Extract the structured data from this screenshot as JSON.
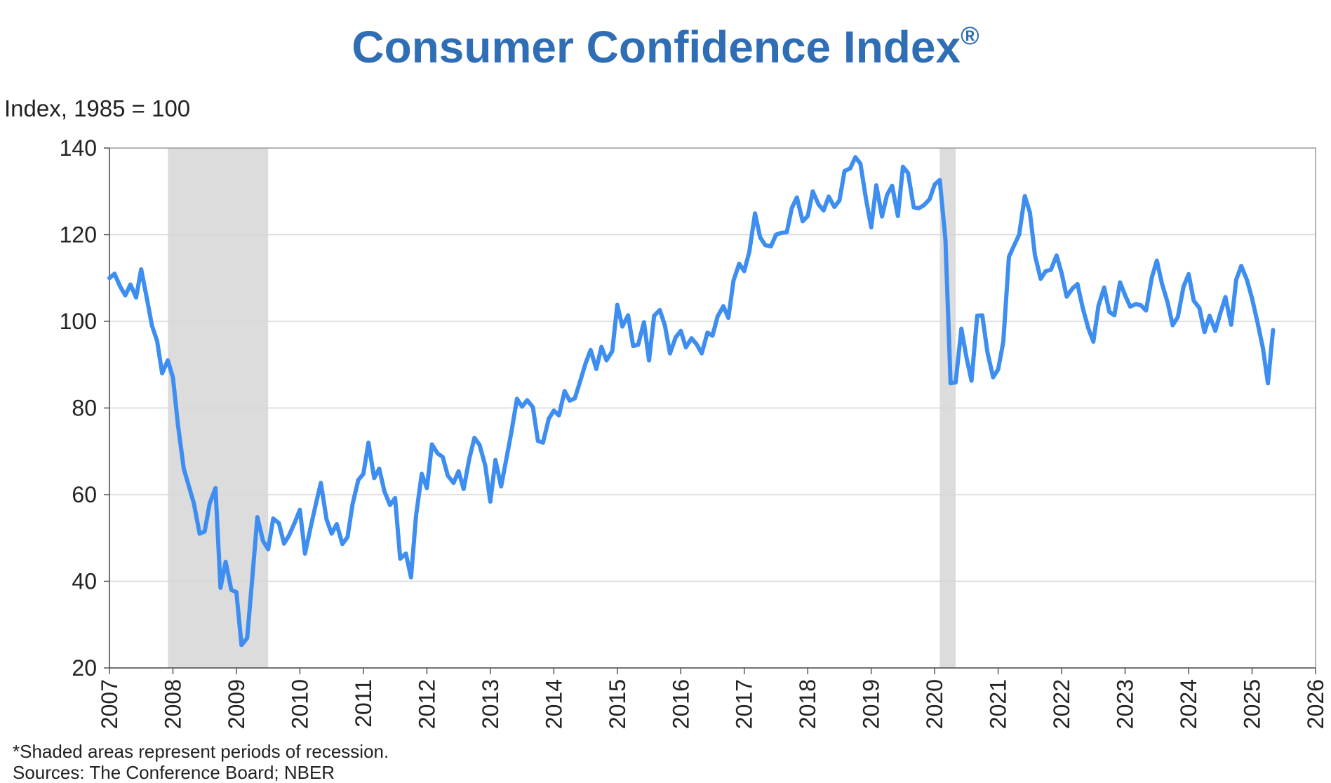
{
  "chart_data": {
    "type": "line",
    "title": "Consumer Confidence Index",
    "title_mark": "®",
    "ylabel": "Index, 1985 = 100",
    "xlabel": "",
    "ylim": [
      20,
      140
    ],
    "xlim": [
      2007,
      2026
    ],
    "y_ticks": [
      20,
      40,
      60,
      80,
      100,
      120,
      140
    ],
    "x_ticks": [
      2007,
      2008,
      2009,
      2010,
      2011,
      2012,
      2013,
      2014,
      2015,
      2016,
      2017,
      2018,
      2019,
      2020,
      2021,
      2022,
      2023,
      2024,
      2025,
      2026
    ],
    "grid": "horizontal",
    "line_color": "#3d8ef0",
    "recession_color": "#dcdcdc",
    "recessions": [
      {
        "start": 2007.92,
        "end": 2009.5
      },
      {
        "start": 2020.08,
        "end": 2020.33
      }
    ],
    "series": [
      {
        "x": [
          2007.0,
          2007.08,
          2007.17,
          2007.25,
          2007.33,
          2007.42,
          2007.5,
          2007.58,
          2007.67,
          2007.75,
          2007.83,
          2007.92,
          2008.0,
          2008.08,
          2008.17,
          2008.25,
          2008.33,
          2008.42,
          2008.5,
          2008.58,
          2008.67,
          2008.75,
          2008.83,
          2008.92,
          2009.0,
          2009.08,
          2009.17,
          2009.25,
          2009.33,
          2009.42,
          2009.5,
          2009.58,
          2009.67,
          2009.75,
          2009.83,
          2009.92,
          2010.0,
          2010.08,
          2010.17,
          2010.25,
          2010.33,
          2010.42,
          2010.5,
          2010.58,
          2010.67,
          2010.75,
          2010.83,
          2010.92,
          2011.0,
          2011.08,
          2011.17,
          2011.25,
          2011.33,
          2011.42,
          2011.5,
          2011.58,
          2011.67,
          2011.75,
          2011.83,
          2011.92,
          2012.0,
          2012.08,
          2012.17,
          2012.25,
          2012.33,
          2012.42,
          2012.5,
          2012.58,
          2012.67,
          2012.75,
          2012.83,
          2012.92,
          2013.0,
          2013.08,
          2013.17,
          2013.25,
          2013.33,
          2013.42,
          2013.5,
          2013.58,
          2013.67,
          2013.75,
          2013.83,
          2013.92,
          2014.0,
          2014.08,
          2014.17,
          2014.25,
          2014.33,
          2014.42,
          2014.5,
          2014.58,
          2014.67,
          2014.75,
          2014.83,
          2014.92,
          2015.0,
          2015.08,
          2015.17,
          2015.25,
          2015.33,
          2015.42,
          2015.5,
          2015.58,
          2015.67,
          2015.75,
          2015.83,
          2015.92,
          2016.0,
          2016.08,
          2016.17,
          2016.25,
          2016.33,
          2016.42,
          2016.5,
          2016.58,
          2016.67,
          2016.75,
          2016.83,
          2016.92,
          2017.0,
          2017.08,
          2017.17,
          2017.25,
          2017.33,
          2017.42,
          2017.5,
          2017.58,
          2017.67,
          2017.75,
          2017.83,
          2017.92,
          2018.0,
          2018.08,
          2018.17,
          2018.25,
          2018.33,
          2018.42,
          2018.5,
          2018.58,
          2018.67,
          2018.75,
          2018.83,
          2018.92,
          2019.0,
          2019.08,
          2019.17,
          2019.25,
          2019.33,
          2019.42,
          2019.5,
          2019.58,
          2019.67,
          2019.75,
          2019.83,
          2019.92,
          2020.0,
          2020.08,
          2020.17,
          2020.25,
          2020.33,
          2020.42,
          2020.5,
          2020.58,
          2020.67,
          2020.75,
          2020.83,
          2020.92,
          2021.0,
          2021.08,
          2021.17,
          2021.25,
          2021.33,
          2021.42,
          2021.5,
          2021.58,
          2021.67,
          2021.75,
          2021.83,
          2021.92,
          2022.0,
          2022.08,
          2022.17,
          2022.25,
          2022.33,
          2022.42,
          2022.5,
          2022.58,
          2022.67,
          2022.75,
          2022.83,
          2022.92,
          2023.0,
          2023.08,
          2023.17,
          2023.25,
          2023.33,
          2023.42,
          2023.5,
          2023.58,
          2023.67,
          2023.75,
          2023.83,
          2023.92,
          2024.0,
          2024.08,
          2024.17,
          2024.25,
          2024.33,
          2024.42,
          2024.5,
          2024.58,
          2024.67,
          2024.75,
          2024.83,
          2024.92,
          2025.0,
          2025.08,
          2025.17,
          2025.25,
          2025.33
        ],
        "values": [
          110,
          111,
          108,
          106,
          108.5,
          105.5,
          112,
          106,
          99,
          95.5,
          88,
          91,
          87,
          76,
          66,
          62,
          58,
          51,
          51.5,
          58,
          61.5,
          38.5,
          44.5,
          38,
          37.5,
          25.3,
          26.9,
          40.8,
          54.8,
          49.3,
          47.4,
          54.5,
          53.4,
          48.7,
          50.6,
          53.6,
          56.5,
          46.4,
          52.5,
          57.7,
          62.7,
          54.3,
          51,
          53.2,
          48.6,
          50.2,
          57.8,
          63.4,
          64.8,
          72,
          63.8,
          66,
          60.8,
          57.6,
          59.2,
          45.2,
          46.4,
          40.9,
          55.2,
          64.8,
          61.5,
          71.6,
          69.5,
          68.7,
          64.4,
          62.7,
          65.4,
          61.3,
          68.4,
          73.1,
          71.5,
          66.7,
          58.4,
          68,
          61.9,
          68.1,
          74.3,
          82.1,
          80.3,
          81.8,
          80.2,
          72.4,
          72,
          77.5,
          79.4,
          78.3,
          83.9,
          81.7,
          82.2,
          86.4,
          90.3,
          93.4,
          89,
          94.1,
          91,
          93.1,
          103.8,
          98.8,
          101.4,
          94.3,
          94.6,
          99.8,
          91,
          101.3,
          102.6,
          99.1,
          92.6,
          96.3,
          97.8,
          94,
          96.1,
          94.7,
          92.6,
          97.4,
          96.7,
          101.1,
          103.5,
          100.8,
          109.4,
          113.3,
          111.6,
          116.1,
          124.9,
          119.4,
          117.6,
          117.3,
          120,
          120.4,
          120.6,
          126.2,
          128.6,
          123.1,
          124.3,
          130,
          127,
          125.6,
          128.8,
          126.4,
          127.9,
          134.7,
          135.3,
          137.9,
          136.4,
          128.1,
          121.7,
          131.4,
          124.2,
          129.2,
          131.3,
          124.3,
          135.7,
          134.2,
          126.3,
          126.1,
          126.8,
          128.2,
          131.6,
          132.6,
          118.8,
          85.7,
          85.9,
          98.3,
          91.7,
          86.3,
          101.3,
          101.4,
          92.9,
          87.1,
          88.9,
          95.2,
          114.9,
          117.5,
          120,
          128.9,
          125.1,
          115.2,
          109.8,
          111.6,
          111.9,
          115.2,
          111.1,
          105.7,
          107.6,
          108.6,
          103.2,
          98.4,
          95.3,
          103.6,
          107.8,
          102.2,
          101.4,
          109,
          106,
          103.4,
          104,
          103.7,
          102.5,
          110.1,
          114,
          108.7,
          104.3,
          99.1,
          101,
          108,
          110.9,
          104.8,
          103.1,
          97.5,
          101.3,
          97.8,
          101.9,
          105.6,
          99.2,
          109.6,
          112.8,
          109.5,
          105.3,
          100.1,
          93.9,
          85.7,
          98
        ]
      }
    ]
  },
  "footnote": {
    "line1": "*Shaded areas represent periods of recession.",
    "line2": "Sources:  The Conference Board;  NBER"
  }
}
